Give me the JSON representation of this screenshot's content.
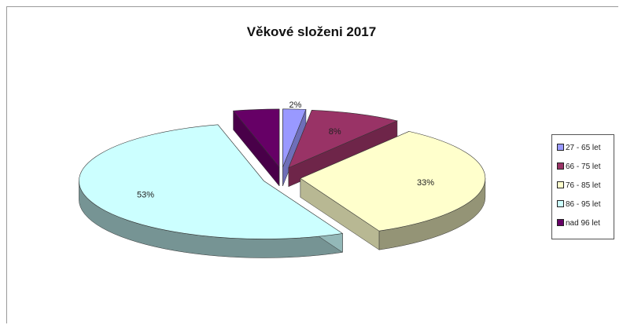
{
  "chart_data": {
    "type": "pie",
    "title": "Věkové složeni 2017",
    "categories": [
      "27 - 65 let",
      "66 - 75 let",
      "76 - 85 let",
      "86 - 95 let",
      "nad 96 let"
    ],
    "values": [
      2,
      8,
      33,
      53,
      4
    ],
    "data_labels": [
      "2%",
      "8%",
      "33%",
      "53%",
      ""
    ],
    "colors": [
      "#9999ff",
      "#993366",
      "#ffffcc",
      "#ccffff",
      "#660066"
    ],
    "legend_position": "right",
    "style": "3d-exploded"
  }
}
